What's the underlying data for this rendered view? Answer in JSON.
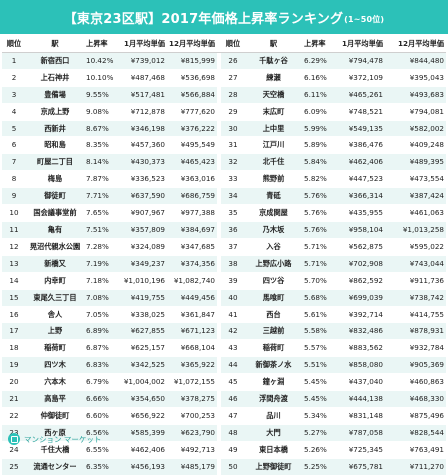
{
  "title": {
    "main": "【東京23区駅】2017年価格上昇率ランキング",
    "sub": "(1~50位)"
  },
  "columns": [
    "順位",
    "駅",
    "上昇率",
    "1月平均単価",
    "12月平均単価"
  ],
  "rows": [
    [
      [
        "1",
        "新宿西口",
        "10.42%",
        "¥739,012",
        "¥815,999"
      ],
      [
        "26",
        "千駄ヶ谷",
        "6.29%",
        "¥794,478",
        "¥844,480"
      ]
    ],
    [
      [
        "2",
        "上石神井",
        "10.10%",
        "¥487,468",
        "¥536,698"
      ],
      [
        "27",
        "練瀬",
        "6.16%",
        "¥372,109",
        "¥395,043"
      ]
    ],
    [
      [
        "3",
        "豊備場",
        "9.55%",
        "¥517,481",
        "¥566,884"
      ],
      [
        "28",
        "天空橋",
        "6.11%",
        "¥465,261",
        "¥493,683"
      ]
    ],
    [
      [
        "4",
        "京成上野",
        "9.08%",
        "¥712,878",
        "¥777,620"
      ],
      [
        "29",
        "末広町",
        "6.09%",
        "¥748,521",
        "¥794,081"
      ]
    ],
    [
      [
        "5",
        "西新井",
        "8.67%",
        "¥346,198",
        "¥376,222"
      ],
      [
        "30",
        "上中里",
        "5.99%",
        "¥549,135",
        "¥582,002"
      ]
    ],
    [
      [
        "6",
        "昭和島",
        "8.35%",
        "¥457,360",
        "¥495,549"
      ],
      [
        "31",
        "江戸川",
        "5.89%",
        "¥386,476",
        "¥409,248"
      ]
    ],
    [
      [
        "7",
        "町屋二丁目",
        "8.14%",
        "¥430,373",
        "¥465,423"
      ],
      [
        "32",
        "北千住",
        "5.84%",
        "¥462,406",
        "¥489,395"
      ]
    ],
    [
      [
        "8",
        "梅島",
        "7.87%",
        "¥336,523",
        "¥363,016"
      ],
      [
        "33",
        "熊野前",
        "5.82%",
        "¥447,523",
        "¥473,554"
      ]
    ],
    [
      [
        "9",
        "御徒町",
        "7.71%",
        "¥637,590",
        "¥686,759"
      ],
      [
        "34",
        "青砥",
        "5.76%",
        "¥366,314",
        "¥387,424"
      ]
    ],
    [
      [
        "10",
        "国会議事堂前",
        "7.65%",
        "¥907,967",
        "¥977,388"
      ],
      [
        "35",
        "京成関屋",
        "5.76%",
        "¥435,955",
        "¥461,063"
      ]
    ],
    [
      [
        "11",
        "亀有",
        "7.51%",
        "¥357,809",
        "¥384,697"
      ],
      [
        "36",
        "乃木坂",
        "5.76%",
        "¥958,104",
        "¥1,013,258"
      ]
    ],
    [
      [
        "12",
        "晃沼代親水公園",
        "7.28%",
        "¥324,089",
        "¥347,685"
      ],
      [
        "37",
        "入谷",
        "5.71%",
        "¥562,875",
        "¥595,022"
      ]
    ],
    [
      [
        "13",
        "新橋又",
        "7.19%",
        "¥349,237",
        "¥374,356"
      ],
      [
        "38",
        "上野広小路",
        "5.71%",
        "¥702,908",
        "¥743,044"
      ]
    ],
    [
      [
        "14",
        "内幸町",
        "7.18%",
        "¥1,010,196",
        "¥1,082,740"
      ],
      [
        "39",
        "四ツ谷",
        "5.70%",
        "¥862,592",
        "¥911,736"
      ]
    ],
    [
      [
        "15",
        "東尾久三丁目",
        "7.08%",
        "¥419,755",
        "¥449,456"
      ],
      [
        "40",
        "馬喰町",
        "5.68%",
        "¥699,039",
        "¥738,742"
      ]
    ],
    [
      [
        "16",
        "舎人",
        "7.05%",
        "¥338,025",
        "¥361,847"
      ],
      [
        "41",
        "西台",
        "5.61%",
        "¥392,714",
        "¥414,755"
      ]
    ],
    [
      [
        "17",
        "上野",
        "6.89%",
        "¥627,855",
        "¥671,123"
      ],
      [
        "42",
        "三越前",
        "5.58%",
        "¥832,486",
        "¥878,931"
      ]
    ],
    [
      [
        "18",
        "稲荷町",
        "6.87%",
        "¥625,157",
        "¥668,104"
      ],
      [
        "43",
        "稲荷町",
        "5.57%",
        "¥883,562",
        "¥932,784"
      ]
    ],
    [
      [
        "19",
        "四ツ木",
        "6.83%",
        "¥342,525",
        "¥365,922"
      ],
      [
        "44",
        "新御茶ノ水",
        "5.51%",
        "¥858,080",
        "¥905,369"
      ]
    ],
    [
      [
        "20",
        "六本木",
        "6.79%",
        "¥1,004,002",
        "¥1,072,155"
      ],
      [
        "45",
        "鐘ヶ淵",
        "5.45%",
        "¥437,040",
        "¥460,863"
      ]
    ],
    [
      [
        "21",
        "高島平",
        "6.66%",
        "¥354,650",
        "¥378,275"
      ],
      [
        "46",
        "浮間舟渡",
        "5.45%",
        "¥444,138",
        "¥468,330"
      ]
    ],
    [
      [
        "22",
        "仲御徒町",
        "6.60%",
        "¥656,922",
        "¥700,253"
      ],
      [
        "47",
        "品川",
        "5.34%",
        "¥831,148",
        "¥875,496"
      ]
    ],
    [
      [
        "23",
        "西ヶ原",
        "6.56%",
        "¥585,399",
        "¥623,790"
      ],
      [
        "48",
        "大門",
        "5.27%",
        "¥787,058",
        "¥828,544"
      ]
    ],
    [
      [
        "24",
        "千住大橋",
        "6.55%",
        "¥462,406",
        "¥492,713"
      ],
      [
        "49",
        "東日本橋",
        "5.26%",
        "¥725,345",
        "¥763,491"
      ]
    ],
    [
      [
        "25",
        "流通センター",
        "6.35%",
        "¥456,193",
        "¥485,179"
      ],
      [
        "50",
        "上野御徒町",
        "5.25%",
        "¥675,781",
        "¥711,270"
      ]
    ]
  ],
  "footer": {
    "logo_text": "マンション マーケット"
  },
  "colors": {
    "accent": "#2cc1b8",
    "row_stripe": "#eaf6f5"
  }
}
